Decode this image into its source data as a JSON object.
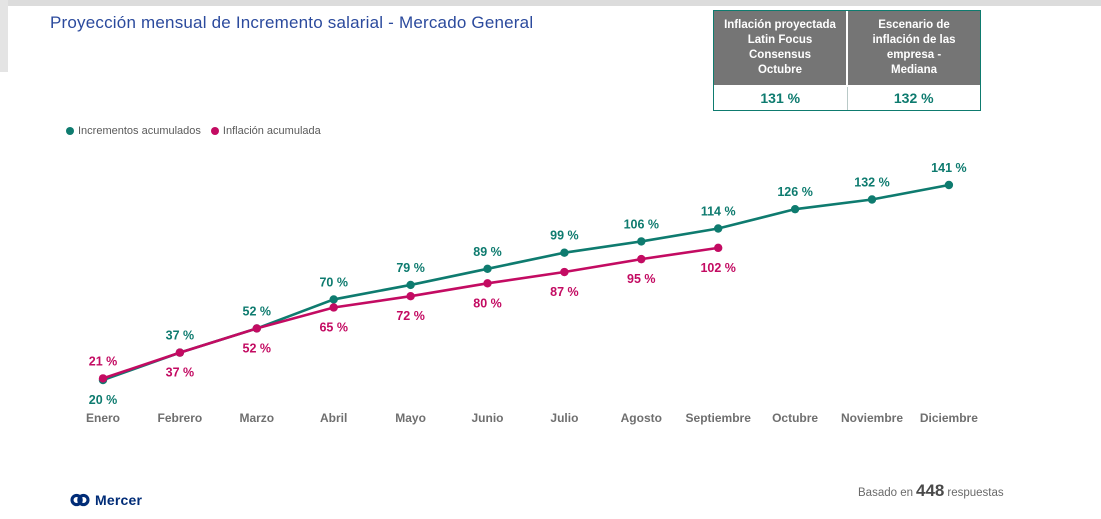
{
  "header": {
    "title": "Proyección mensual de Incremento salarial - Mercado General"
  },
  "summary_table": {
    "columns": [
      {
        "header": "Inflación proyectada\nLatin Focus\nConsensus\nOctubre",
        "value": "131 %"
      },
      {
        "header": "Escenario de\ninflación de las\nempresa -\nMediana",
        "value": "132 %"
      }
    ]
  },
  "legend": [
    {
      "label": "Incrementos acumulados",
      "color": "#0e7b6f"
    },
    {
      "label": "Inflación acumulada",
      "color": "#c30b62"
    }
  ],
  "chart_data": {
    "type": "line",
    "categories": [
      "Enero",
      "Febrero",
      "Marzo",
      "Abril",
      "Mayo",
      "Junio",
      "Julio",
      "Agosto",
      "Septiembre",
      "Octubre",
      "Noviembre",
      "Diciembre"
    ],
    "series": [
      {
        "name": "Incrementos acumulados",
        "color": "#0e7b6f",
        "values": [
          20,
          37,
          52,
          70,
          79,
          89,
          99,
          106,
          114,
          126,
          132,
          141
        ]
      },
      {
        "name": "Inflación acumulada",
        "color": "#c30b62",
        "values": [
          21,
          37,
          52,
          65,
          72,
          80,
          87,
          95,
          102
        ]
      }
    ],
    "value_suffix": " %",
    "value_labels": true,
    "ylim": [
      0,
      150
    ],
    "grid": false,
    "axes_visible": false,
    "legend_position": "top-left",
    "title": "Proyección mensual de Incremento salarial - Mercado General"
  },
  "footer": {
    "brand": "Mercer",
    "basis_prefix": "Basado en",
    "basis_count": "448",
    "basis_suffix": "respuestas"
  },
  "colors": {
    "title": "#2b4a9d",
    "teal": "#0e7b6f",
    "pink": "#c30b62",
    "table_header_bg": "#757575",
    "month_label": "#6f6f6f",
    "brand_navy": "#002c77"
  }
}
